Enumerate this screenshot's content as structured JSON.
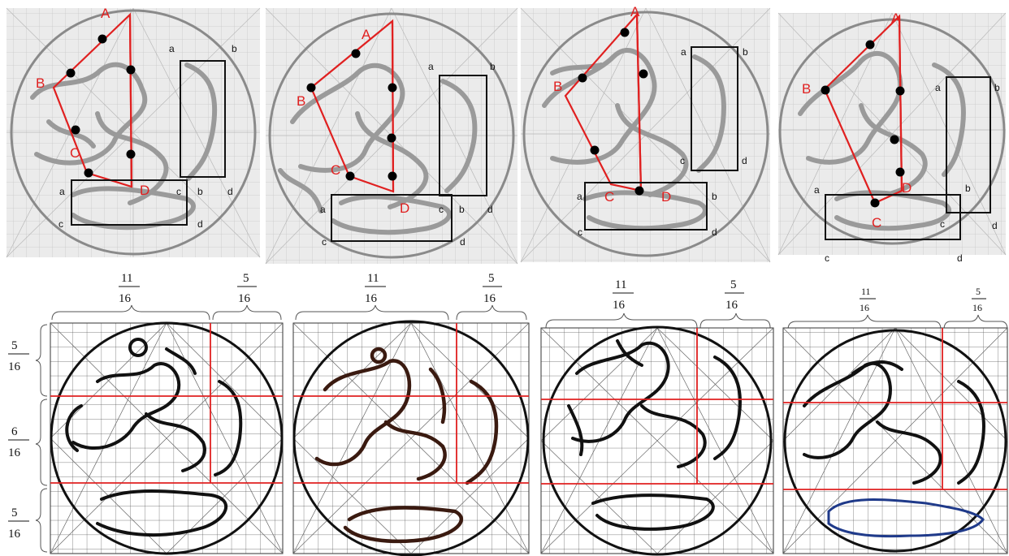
{
  "figure": {
    "top_panels": [
      {
        "id": "top-1",
        "vertices": [
          "A",
          "B",
          "C",
          "D"
        ],
        "box_corners": [
          "a",
          "b",
          "c",
          "d"
        ],
        "box2_corners": [
          "a",
          "b",
          "c",
          "d"
        ]
      },
      {
        "id": "top-2",
        "vertices": [
          "A",
          "B",
          "C",
          "D"
        ],
        "box_corners": [
          "a",
          "b",
          "c",
          "d"
        ],
        "box2_corners": [
          "a",
          "b",
          "c",
          "d"
        ]
      },
      {
        "id": "top-3",
        "vertices": [
          "A",
          "B",
          "C",
          "D"
        ],
        "box_corners": [
          "a",
          "b",
          "c",
          "d"
        ],
        "box2_corners": [
          "a",
          "b",
          "c",
          "d"
        ]
      },
      {
        "id": "top-4",
        "vertices": [
          "A",
          "B",
          "C",
          "D"
        ],
        "box_corners": [
          "a",
          "b",
          "c",
          "d"
        ],
        "box2_corners": [
          "a",
          "b",
          "c",
          "d"
        ]
      }
    ],
    "proportions": {
      "horizontal": [
        {
          "num": "11",
          "den": "16"
        },
        {
          "num": "5",
          "den": "16"
        }
      ],
      "vertical": [
        {
          "num": "5",
          "den": "16"
        },
        {
          "num": "6",
          "den": "16"
        },
        {
          "num": "5",
          "den": "16"
        }
      ]
    },
    "colors": {
      "construction_red": "#e02020",
      "grid_line": "#888888",
      "panel_bg": "#ebebeb",
      "outline": "#111111"
    }
  }
}
